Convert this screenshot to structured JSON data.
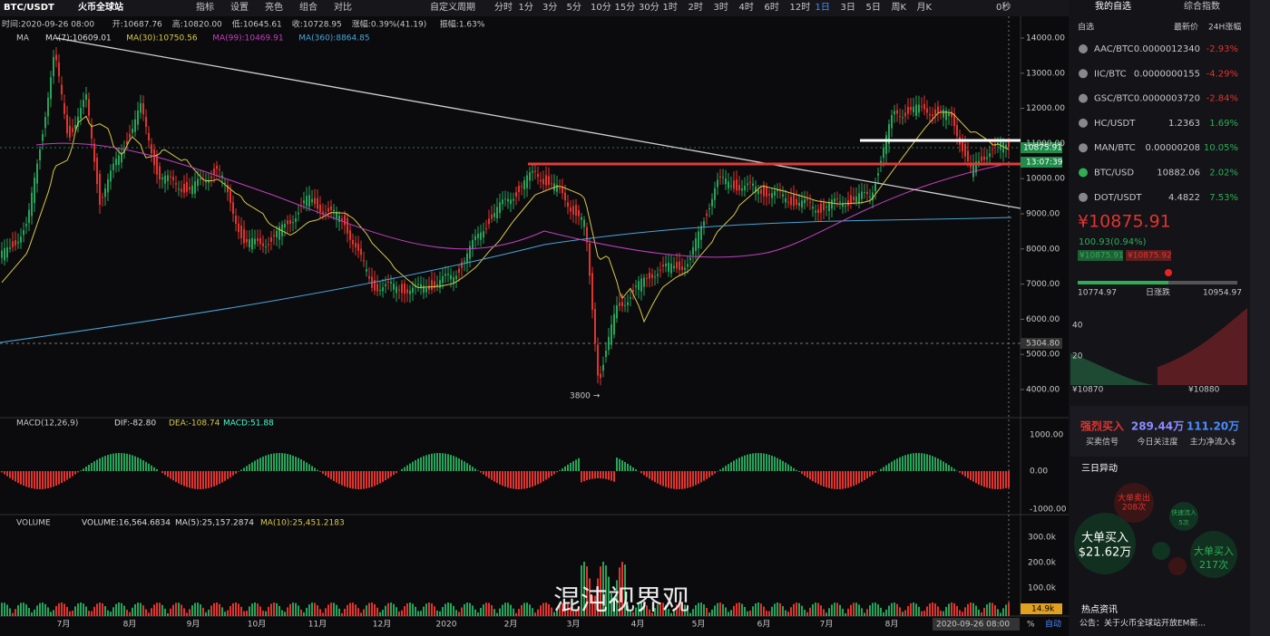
{
  "toolbar": {
    "pair": "BTC/USDT",
    "exchange": "火币全球站",
    "tools": [
      "指标",
      "设置",
      "亮色",
      "组合",
      "对比"
    ],
    "custom": "自定义周期",
    "periods": [
      "分时",
      "1分",
      "3分",
      "5分",
      "10分",
      "15分",
      "30分",
      "1时",
      "2时",
      "3时",
      "4时",
      "6时",
      "12时",
      "1日",
      "3日",
      "5日",
      "周K",
      "月K"
    ],
    "countdown": "0秒"
  },
  "info": [
    "时间:2020-09-26 08:00",
    "开:10687.76",
    "高:10820.00",
    "低:10645.61",
    "收:10728.95",
    "涨幅:0.39%(41.19)",
    "振幅:1.63%"
  ],
  "ma": {
    "name": "MA",
    "items": [
      "MA(7):10609.01",
      "MA(30):10750.56",
      "MA(99):10469.91",
      "MA(360):8864.85"
    ]
  },
  "price_axis": [
    {
      "value": 14000,
      "label": "14000.00"
    },
    {
      "value": 13000,
      "label": "13000.00"
    },
    {
      "value": 12000,
      "label": "12000.00"
    },
    {
      "value": 11000,
      "label": "11000.00"
    },
    {
      "value": 10000,
      "label": "10000.00"
    },
    {
      "value": 9000,
      "label": "9000.00"
    },
    {
      "value": 8000,
      "label": "8000.00"
    },
    {
      "value": 7000,
      "label": "7000.00"
    },
    {
      "value": 6000,
      "label": "6000.00"
    },
    {
      "value": 5000,
      "label": "5000.00"
    },
    {
      "value": 4000,
      "label": "4000.00"
    }
  ],
  "price_tags": {
    "last": "10875.91",
    "timer": "13:07:39",
    "level": "5304.80",
    "low_mark": "3800 →"
  },
  "macd": {
    "name": "MACD(12,26,9)",
    "items": [
      "DIF:-82.80",
      "DEA:-108.74",
      "MACD:51.88"
    ],
    "ticks": [
      "1000.00",
      "0.00",
      "-1000.00"
    ]
  },
  "volume": {
    "name": "VOLUME",
    "items": [
      "VOLUME:16,564.6834",
      "MA(5):25,157.2874",
      "MA(10):25,451.2183"
    ],
    "ticks": [
      "300.0k",
      "200.0k",
      "100.0k"
    ],
    "last": "14.9k"
  },
  "months": [
    "7月",
    "8月",
    "9月",
    "10月",
    "11月",
    "12月",
    "2020",
    "2月",
    "3月",
    "4月",
    "5月",
    "6月",
    "7月",
    "8月"
  ],
  "footer": {
    "time": "2020-09-26 08:00",
    "pct": "%",
    "auto": "自动"
  },
  "watermark": "混沌视界观",
  "panel": {
    "tabs": [
      "我的自选",
      "综合指数"
    ],
    "head": [
      "自选",
      "最新价",
      "24H涨幅"
    ],
    "rows": [
      [
        "AAC/BTC",
        "0.0000012340",
        "-2.93%"
      ],
      [
        "IIC/BTC",
        "0.0000000155",
        "-4.29%"
      ],
      [
        "GSC/BTC",
        "0.0000003720",
        "-2.84%"
      ],
      [
        "HC/USDT",
        "1.2363",
        "1.69%"
      ],
      [
        "MAN/BTC",
        "0.00000208",
        "10.05%"
      ],
      [
        "BTC/USD",
        "10882.06",
        "2.02%"
      ],
      [
        "DOT/USDT",
        "4.4822",
        "7.53%"
      ]
    ],
    "price": "¥10875.91",
    "change": "100.93(0.94%)",
    "bid": "¥10875.91",
    "ask": "¥10875.92",
    "low": "10774.97",
    "range": "日涨跌",
    "high": "10954.97",
    "depth": [
      "40",
      "20",
      "¥10870",
      "¥10880"
    ],
    "stats": [
      [
        "强烈买入",
        "买卖信号"
      ],
      [
        "289.44万",
        "今日关注度"
      ],
      [
        "111.20万",
        "主力净流入$"
      ]
    ],
    "abnormal": "三日异动",
    "bubbles": [
      [
        "大单卖出",
        "208次"
      ],
      [
        "快速流入",
        "5次"
      ],
      [
        "大单买入",
        "$21.62万"
      ],
      [
        "大单买入",
        "217次"
      ]
    ],
    "news": "热点资讯",
    "notice": "公告：关于火币全球站开放EM新..."
  }
}
